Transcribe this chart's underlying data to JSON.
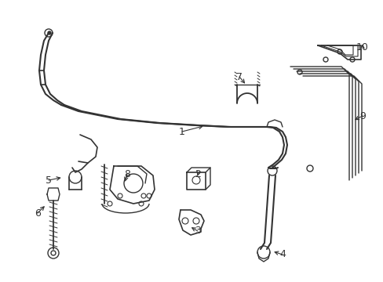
{
  "background_color": "#ffffff",
  "line_color": "#333333",
  "line_width": 1.0,
  "label_fontsize": 9,
  "fig_width": 4.89,
  "fig_height": 3.6,
  "dpi": 100
}
